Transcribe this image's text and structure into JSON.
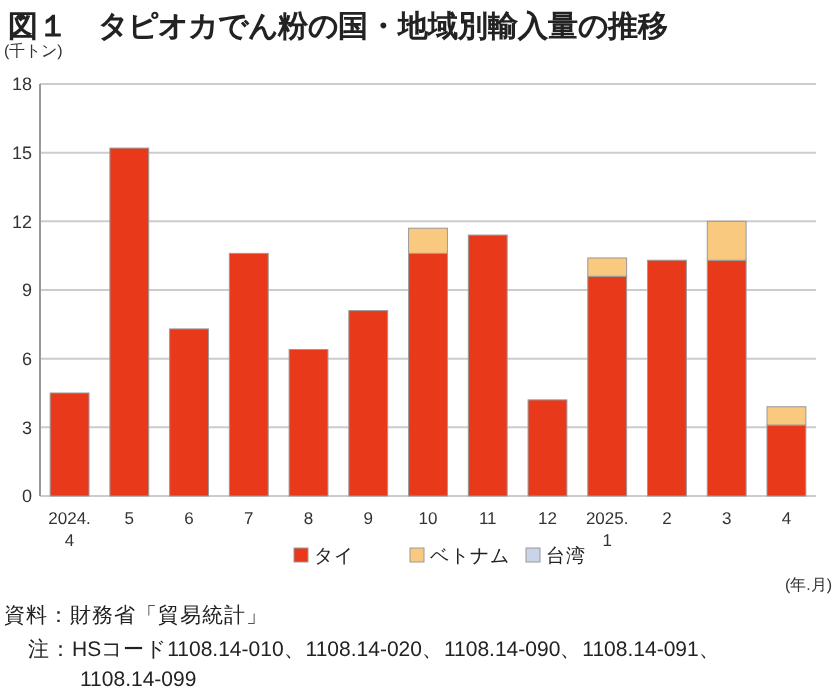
{
  "chart_data": {
    "type": "bar",
    "title": "図１　タピオカでん粉の国・地域別輸入量の推移",
    "ylabel": "(千トン)",
    "xlabel": "(年.月)",
    "categories": [
      "2024.\n4",
      "5",
      "6",
      "7",
      "8",
      "9",
      "10",
      "11",
      "12",
      "2025.\n1",
      "2",
      "3",
      "4"
    ],
    "series": [
      {
        "name": "タイ",
        "color": "#e8391a",
        "values": [
          4.5,
          15.2,
          7.3,
          10.6,
          6.4,
          8.1,
          10.6,
          11.4,
          4.2,
          9.6,
          10.3,
          10.3,
          3.1
        ]
      },
      {
        "name": "ベトナム",
        "color": "#f8c97e",
        "values": [
          0,
          0,
          0,
          0,
          0,
          0,
          1.1,
          0,
          0,
          0.8,
          0,
          1.7,
          0.8
        ]
      },
      {
        "name": "台湾",
        "color": "#c9d4e8",
        "values": [
          0,
          0,
          0,
          0,
          0,
          0,
          0,
          0,
          0,
          0,
          0,
          0,
          0
        ]
      }
    ],
    "stacked": true,
    "ylim": [
      0,
      18
    ],
    "yticks": [
      0,
      3,
      6,
      9,
      12,
      15,
      18
    ],
    "grid": "y",
    "legend": "bottom",
    "annotations": [
      "資料：財務省「貿易統計」",
      "注：HSコード1108.14-010、1108.14-020、1108.14-090、1108.14-091、1108.14-099"
    ]
  }
}
